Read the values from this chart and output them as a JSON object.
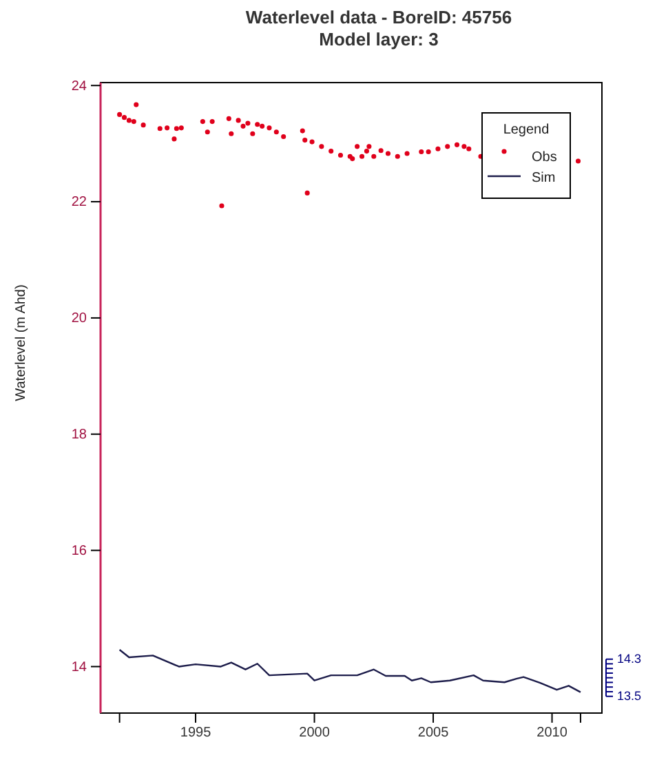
{
  "chart_data": {
    "type": "scatter",
    "title": "Waterlevel data - BoreID:  45756",
    "subtitle": "Model layer: 3",
    "ylabel": "Waterlevel (m Ahd)",
    "xlim": [
      1991.0,
      2012.1
    ],
    "ylim": [
      13.2,
      24.05
    ],
    "xticks": [
      {
        "value": 1991.8,
        "label": null
      },
      1995,
      2000,
      2005,
      2010,
      {
        "value": 2011.2,
        "label": null
      }
    ],
    "yticks": [
      14,
      16,
      18,
      20,
      22,
      24
    ],
    "y2lim": [
      13.14,
      26.71
    ],
    "y2ticks": [
      13.5,
      {
        "value": 13.6,
        "label": null
      },
      {
        "value": 13.7,
        "label": null
      },
      {
        "value": 13.8,
        "label": null
      },
      {
        "value": 13.9,
        "label": null
      },
      {
        "value": 14.0,
        "label": null
      },
      {
        "value": 14.1,
        "label": null
      },
      {
        "value": 14.2,
        "label": null
      },
      14.3
    ],
    "legend": "top right",
    "legend_title": "Legend",
    "grid": false,
    "series": [
      {
        "name": "Obs",
        "marker": "circle",
        "color": "#e0001b",
        "x": [
          1991.8,
          1992.0,
          1992.2,
          1992.5,
          1992.4,
          1992.8,
          1993.5,
          1993.8,
          1994.1,
          1994.2,
          1994.4,
          1995.3,
          1995.5,
          1995.7,
          1996.1,
          1996.4,
          1996.5,
          1996.8,
          1997.0,
          1997.2,
          1997.4,
          1997.6,
          1997.8,
          1998.1,
          1998.4,
          1998.7,
          1999.5,
          1999.7,
          1999.6,
          1999.9,
          2000.3,
          2000.7,
          2001.1,
          2001.5,
          2001.6,
          2001.8,
          2002.0,
          2002.2,
          2002.3,
          2002.5,
          2002.8,
          2003.1,
          2003.5,
          2003.9,
          2004.5,
          2004.8,
          2005.2,
          2005.6,
          2006.0,
          2006.3,
          2006.5,
          2007.0,
          2011.1
        ],
        "values": [
          23.5,
          23.45,
          23.4,
          23.67,
          23.38,
          23.32,
          23.26,
          23.27,
          23.08,
          23.26,
          23.27,
          23.38,
          23.2,
          23.38,
          21.93,
          23.43,
          23.17,
          23.4,
          23.3,
          23.35,
          23.17,
          23.33,
          23.3,
          23.27,
          23.2,
          23.12,
          23.22,
          22.15,
          23.06,
          23.03,
          22.95,
          22.87,
          22.8,
          22.78,
          22.74,
          22.95,
          22.78,
          22.87,
          22.95,
          22.78,
          22.88,
          22.83,
          22.78,
          22.83,
          22.86,
          22.86,
          22.91,
          22.95,
          22.98,
          22.95,
          22.91,
          22.78,
          22.7
        ]
      },
      {
        "name": "Sim",
        "type": "line",
        "color": "#1c1c4a",
        "line_style": "solid",
        "x": [
          1991.8,
          1992.2,
          1993.2,
          1994.3,
          1995.0,
          1996.06,
          1996.5,
          1997.1,
          1997.6,
          1998.1,
          1999.7,
          2000.0,
          2000.7,
          2001.8,
          2002.5,
          2003.0,
          2003.8,
          2004.1,
          2004.5,
          2004.9,
          2005.7,
          2006.7,
          2007.1,
          2008.0,
          2008.5,
          2008.8,
          2009.5,
          2010.2,
          2010.7,
          2011.2
        ],
        "values": [
          14.29,
          14.16,
          14.19,
          14.0,
          14.04,
          14.0,
          14.07,
          13.95,
          14.05,
          13.85,
          13.88,
          13.76,
          13.85,
          13.85,
          13.95,
          13.84,
          13.84,
          13.76,
          13.8,
          13.73,
          13.76,
          13.85,
          13.76,
          13.73,
          13.79,
          13.82,
          13.72,
          13.6,
          13.67,
          13.56
        ]
      }
    ]
  }
}
